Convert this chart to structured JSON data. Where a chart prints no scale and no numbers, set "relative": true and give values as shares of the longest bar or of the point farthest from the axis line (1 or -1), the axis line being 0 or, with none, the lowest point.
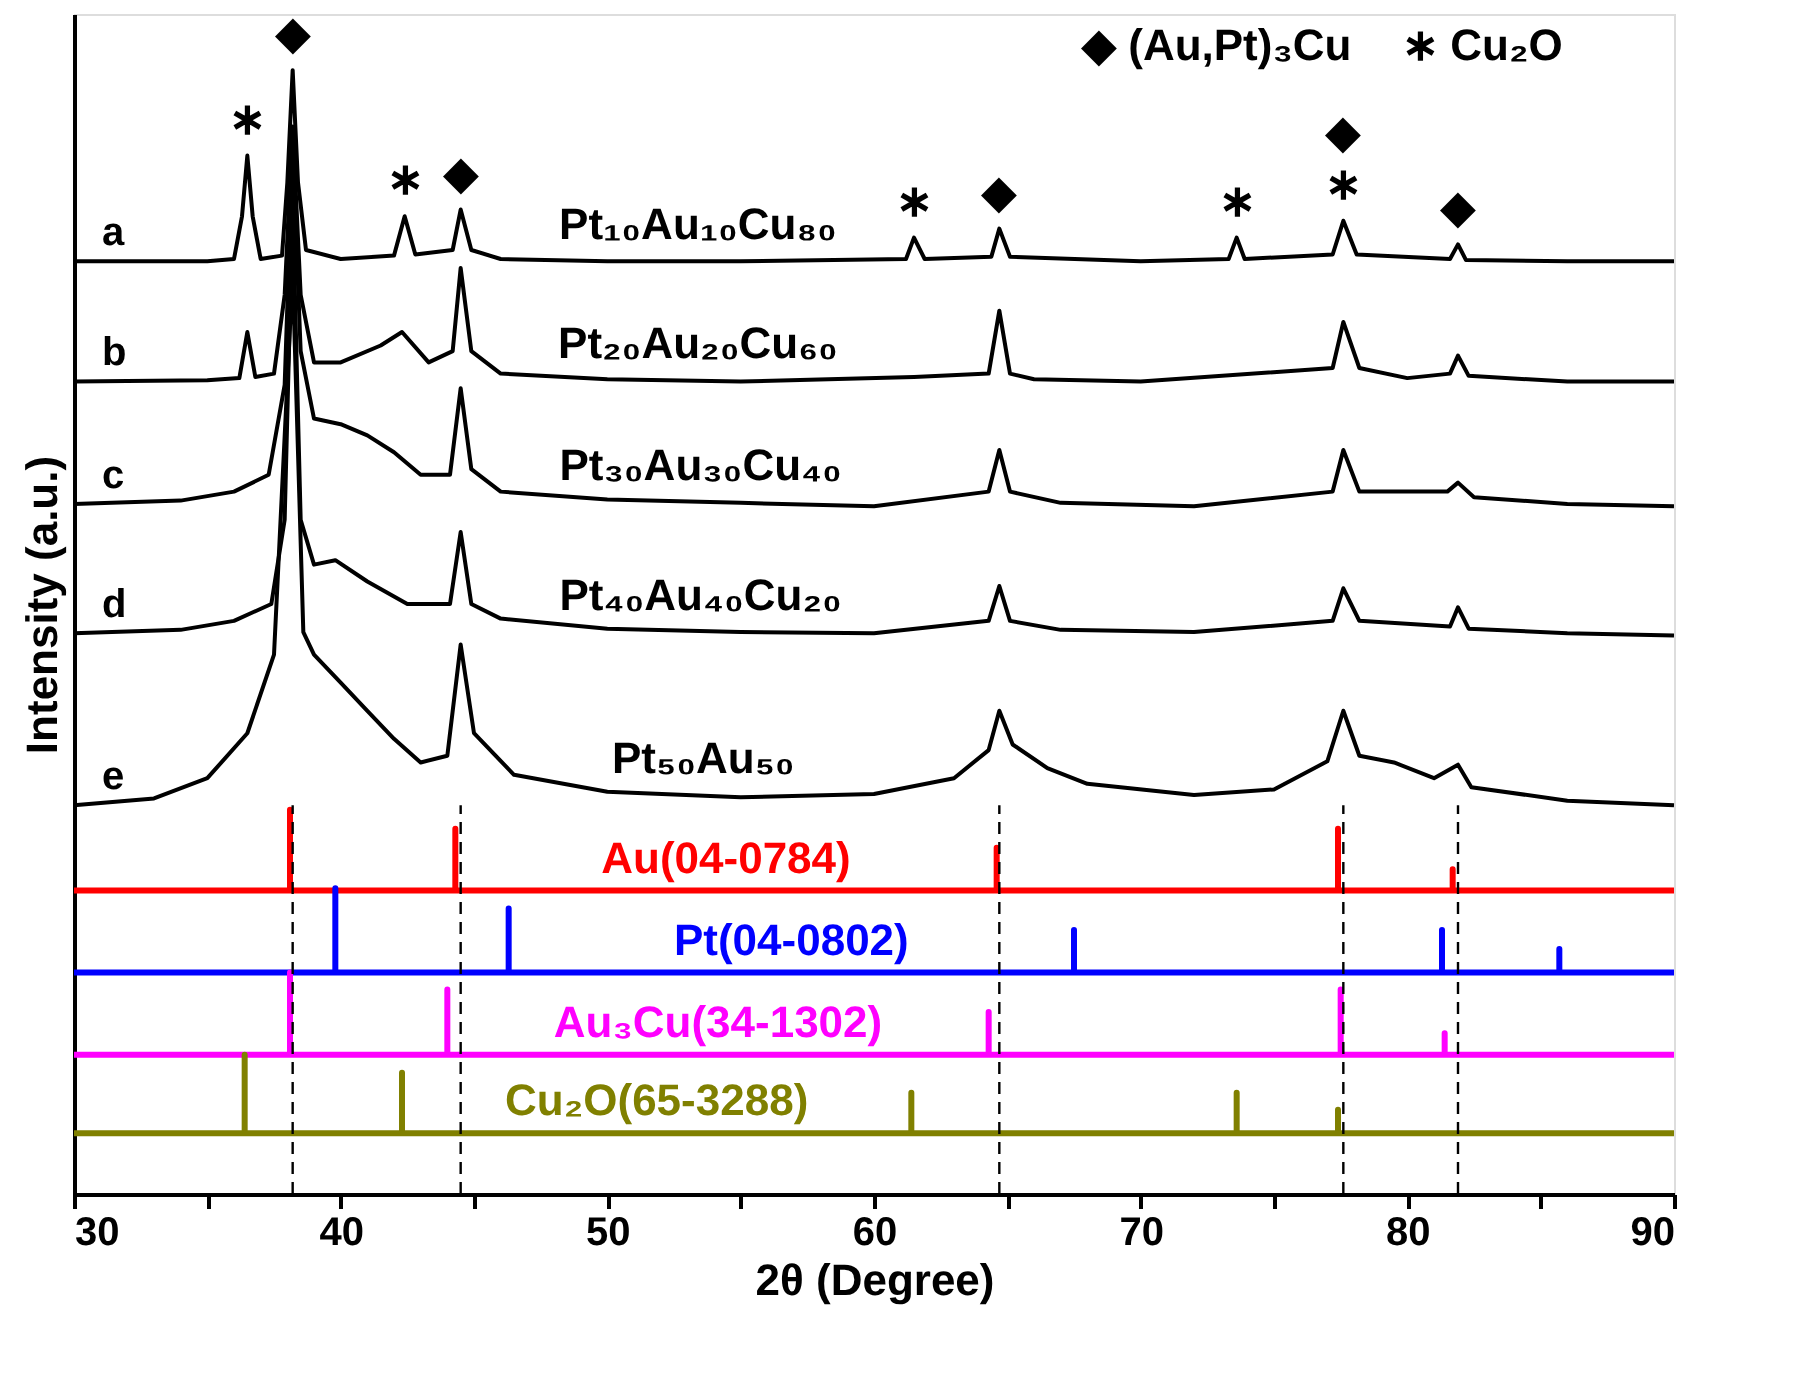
{
  "chart_data": {
    "type": "line",
    "relative": true,
    "xlabel": "2θ (Degree)",
    "ylabel": "Intensity (a.u.)",
    "xlim": [
      30,
      90
    ],
    "xticks": [
      30,
      {
        "value": 35,
        "label": null
      },
      40,
      {
        "value": 45,
        "label": null
      },
      50,
      {
        "value": 55,
        "label": null
      },
      60,
      {
        "value": 65,
        "label": null
      },
      70,
      {
        "value": 75,
        "label": null
      },
      80,
      {
        "value": 85,
        "label": null
      },
      90
    ],
    "grid": false,
    "marker": "none",
    "line_style": "solid",
    "series": [
      {
        "name": "a",
        "color": "#000000",
        "x": [
          30,
          35,
          36.0,
          36.3,
          36.5,
          36.7,
          37.0,
          37.8,
          38.0,
          38.2,
          38.4,
          38.7,
          40,
          42.0,
          42.4,
          42.8,
          44.2,
          44.5,
          44.9,
          46,
          50,
          55,
          61.2,
          61.5,
          61.9,
          64.4,
          64.7,
          65.1,
          70,
          73.3,
          73.6,
          73.9,
          77.2,
          77.6,
          78.1,
          81.6,
          81.9,
          82.2,
          86,
          90
        ],
        "values": [
          0.83,
          0.83,
          0.832,
          0.87,
          0.924,
          0.87,
          0.832,
          0.835,
          0.9,
          1.0,
          0.9,
          0.84,
          0.832,
          0.835,
          0.87,
          0.836,
          0.84,
          0.876,
          0.84,
          0.832,
          0.83,
          0.83,
          0.832,
          0.851,
          0.832,
          0.834,
          0.859,
          0.834,
          0.83,
          0.832,
          0.851,
          0.832,
          0.836,
          0.866,
          0.836,
          0.832,
          0.845,
          0.831,
          0.83,
          0.83
        ]
      },
      {
        "name": "b",
        "color": "#000000",
        "x": [
          30,
          35,
          36.2,
          36.5,
          36.8,
          37.5,
          37.9,
          38.2,
          38.5,
          39,
          40,
          41.5,
          42.3,
          43.3,
          44.2,
          44.5,
          44.9,
          46,
          50,
          55,
          61.5,
          64.3,
          64.7,
          65.1,
          66,
          70,
          77.2,
          77.6,
          78.2,
          80,
          81.6,
          81.9,
          82.3,
          86,
          90
        ],
        "values": [
          0.723,
          0.724,
          0.726,
          0.767,
          0.727,
          0.73,
          0.8,
          0.95,
          0.8,
          0.74,
          0.74,
          0.755,
          0.767,
          0.74,
          0.75,
          0.824,
          0.75,
          0.73,
          0.725,
          0.723,
          0.727,
          0.73,
          0.786,
          0.73,
          0.725,
          0.723,
          0.735,
          0.776,
          0.735,
          0.726,
          0.73,
          0.746,
          0.728,
          0.723,
          0.723
        ]
      },
      {
        "name": "c",
        "color": "#000000",
        "x": [
          30,
          34,
          36,
          37.3,
          37.9,
          38.2,
          38.5,
          39,
          40,
          41,
          42,
          43,
          44.1,
          44.5,
          44.9,
          46,
          50,
          55,
          60,
          64.3,
          64.7,
          65.1,
          67,
          72,
          77.2,
          77.6,
          78.2,
          81.5,
          81.9,
          82.5,
          86,
          90
        ],
        "values": [
          0.614,
          0.617,
          0.625,
          0.64,
          0.72,
          0.93,
          0.75,
          0.69,
          0.685,
          0.675,
          0.66,
          0.64,
          0.64,
          0.717,
          0.645,
          0.625,
          0.618,
          0.615,
          0.612,
          0.625,
          0.662,
          0.625,
          0.615,
          0.612,
          0.625,
          0.662,
          0.625,
          0.625,
          0.633,
          0.62,
          0.614,
          0.612
        ]
      },
      {
        "name": "d",
        "color": "#000000",
        "x": [
          30,
          34,
          36,
          37.4,
          37.9,
          38.2,
          38.5,
          39,
          39.8,
          41,
          42.5,
          44.1,
          44.5,
          44.9,
          46,
          50,
          55,
          60,
          64.3,
          64.7,
          65.1,
          67,
          72,
          77.2,
          77.6,
          78.2,
          81.6,
          81.9,
          82.3,
          86,
          90
        ],
        "values": [
          0.499,
          0.502,
          0.51,
          0.525,
          0.6,
          0.88,
          0.6,
          0.56,
          0.564,
          0.545,
          0.525,
          0.525,
          0.589,
          0.525,
          0.512,
          0.503,
          0.5,
          0.499,
          0.51,
          0.541,
          0.51,
          0.502,
          0.5,
          0.51,
          0.539,
          0.51,
          0.505,
          0.522,
          0.503,
          0.499,
          0.497
        ]
      },
      {
        "name": "e",
        "color": "#000000",
        "x": [
          30,
          33,
          35,
          36.5,
          37.5,
          38.2,
          38.6,
          39,
          40,
          41,
          42,
          43,
          44,
          44.5,
          45,
          46.5,
          50,
          55,
          60,
          63,
          64.3,
          64.7,
          65.2,
          66.5,
          68,
          72,
          75,
          77,
          77.6,
          78.2,
          79.5,
          81,
          81.9,
          82.4,
          86,
          90
        ],
        "values": [
          0.346,
          0.352,
          0.37,
          0.41,
          0.48,
          0.82,
          0.5,
          0.48,
          0.455,
          0.43,
          0.405,
          0.384,
          0.39,
          0.489,
          0.41,
          0.373,
          0.358,
          0.353,
          0.356,
          0.37,
          0.395,
          0.43,
          0.4,
          0.379,
          0.365,
          0.355,
          0.36,
          0.385,
          0.43,
          0.39,
          0.384,
          0.37,
          0.382,
          0.362,
          0.35,
          0.346
        ]
      },
      {
        "name": "Au(04-0784)",
        "color": "#ff0000",
        "x": [
          30,
          38.1,
          38.1,
          38.1,
          44.3,
          44.3,
          44.3,
          64.6,
          64.6,
          64.6,
          77.4,
          77.4,
          77.4,
          81.7,
          81.7,
          81.7,
          90
        ],
        "values": [
          0.27,
          0.27,
          0.342,
          0.27,
          0.27,
          0.325,
          0.27,
          0.27,
          0.308,
          0.27,
          0.27,
          0.325,
          0.27,
          0.27,
          0.289,
          0.27,
          0.27
        ]
      },
      {
        "name": "Pt(04-0802)",
        "color": "#0000ff",
        "x": [
          30,
          39.8,
          39.8,
          39.8,
          46.3,
          46.3,
          46.3,
          67.5,
          67.5,
          67.5,
          81.3,
          81.3,
          81.3,
          85.7,
          85.7,
          85.7,
          90
        ],
        "values": [
          0.197,
          0.197,
          0.272,
          0.197,
          0.197,
          0.254,
          0.197,
          0.197,
          0.235,
          0.197,
          0.197,
          0.235,
          0.197,
          0.197,
          0.218,
          0.197,
          0.197
        ]
      },
      {
        "name": "Au₃Cu(34-1302)",
        "color": "#ff00ff",
        "x": [
          30,
          38.1,
          38.1,
          38.1,
          44.0,
          44.0,
          44.0,
          64.3,
          64.3,
          64.3,
          77.5,
          77.5,
          77.5,
          81.4,
          81.4,
          81.4,
          90
        ],
        "values": [
          0.124,
          0.124,
          0.197,
          0.124,
          0.124,
          0.182,
          0.124,
          0.124,
          0.162,
          0.124,
          0.124,
          0.182,
          0.124,
          0.124,
          0.143,
          0.124,
          0.124
        ]
      },
      {
        "name": "Cu₂O(65-3288)",
        "color": "#808000",
        "x": [
          30,
          36.4,
          36.4,
          36.4,
          42.3,
          42.3,
          42.3,
          61.4,
          61.4,
          61.4,
          73.6,
          73.6,
          73.6,
          77.4,
          77.4,
          77.4,
          90
        ],
        "values": [
          0.054,
          0.054,
          0.124,
          0.054,
          0.054,
          0.108,
          0.054,
          0.054,
          0.09,
          0.054,
          0.054,
          0.09,
          0.054,
          0.054,
          0.075,
          0.054,
          0.054
        ]
      }
    ],
    "ref_lines": [
      {
        "axis": "x",
        "value": 38.2,
        "color": "#000000",
        "line_style": "dashed"
      },
      {
        "axis": "x",
        "value": 44.5,
        "color": "#000000",
        "line_style": "dashed"
      },
      {
        "axis": "x",
        "value": 64.7,
        "color": "#000000",
        "line_style": "dashed"
      },
      {
        "axis": "x",
        "value": 77.6,
        "color": "#000000",
        "line_style": "dashed"
      },
      {
        "axis": "x",
        "value": 81.9,
        "color": "#000000",
        "line_style": "dashed"
      }
    ],
    "annotations": [
      "◆ (Au,Pt)₃Cu",
      "∗ Cu₂O",
      {
        "text": "Pt₁₀Au₁₀Cu₈₀",
        "x": 53.4,
        "y": 0.83
      },
      {
        "text": "Pt₂₀Au₂₀Cu₆₀",
        "x": 53.4,
        "y": 0.724
      },
      {
        "text": "Pt₃₀Au₃₀Cu₄₀",
        "x": 53.5,
        "y": 0.616
      },
      {
        "text": "Pt₄₀Au₄₀Cu₂₀",
        "x": 53.5,
        "y": 0.5
      },
      {
        "text": "Pt₅₀Au₅₀",
        "x": 53.6,
        "y": 0.355
      },
      {
        "text": "◆",
        "x": 38.2,
        "y": 1.0
      },
      {
        "text": "∗",
        "x": 36.5,
        "y": 0.924
      },
      {
        "text": "∗",
        "x": 42.4,
        "y": 0.87
      },
      {
        "text": "◆",
        "x": 44.5,
        "y": 0.876
      },
      {
        "text": "∗",
        "x": 61.5,
        "y": 0.851
      },
      {
        "text": "◆",
        "x": 64.7,
        "y": 0.859
      },
      {
        "text": "∗",
        "x": 73.6,
        "y": 0.851
      },
      {
        "text": "∗",
        "x": 77.6,
        "y": 0.866
      },
      {
        "text": "◆",
        "x": 77.6,
        "y": 0.866
      },
      {
        "text": "◆",
        "x": 81.9,
        "y": 0.845
      }
    ]
  }
}
